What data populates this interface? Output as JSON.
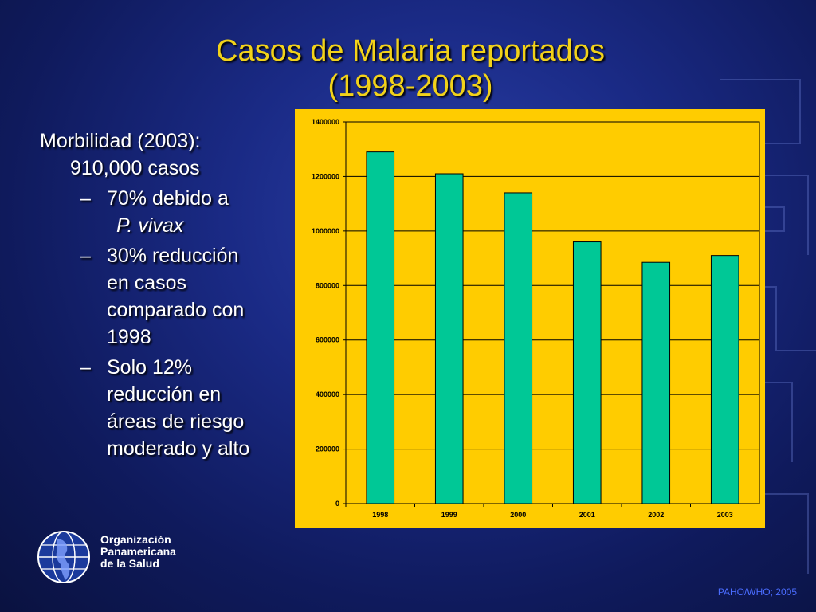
{
  "slide": {
    "title_line1": "Casos de Malaria reportados",
    "title_line2": "(1998-2003)",
    "footer": "PAHO/WHO; 2005"
  },
  "bullets": {
    "main_line1": "Morbilidad (2003):",
    "main_line2": "910,000 casos",
    "sub1_line1": "70% debido a",
    "sub1_line2": "P. vivax",
    "sub2_lines": [
      "30% reducción",
      "en casos",
      "comparado con",
      "1998"
    ],
    "sub3_lines": [
      "Solo 12%",
      "reducción en",
      "áreas de riesgo",
      "moderado y alto"
    ],
    "dash": "–"
  },
  "organization": {
    "line1": "Organización",
    "line2": "Panamericana",
    "line3": "de la Salud",
    "logo_icon": "globe-icon"
  },
  "colors": {
    "title": "#f2d21a",
    "chart_background": "#ffcc00",
    "bar_fill": "#00c896"
  },
  "chart_data": {
    "type": "bar",
    "categories": [
      "1998",
      "1999",
      "2000",
      "2001",
      "2002",
      "2003"
    ],
    "values": [
      1290000,
      1210000,
      1140000,
      960000,
      885000,
      910000
    ],
    "yticks": [
      0,
      200000,
      400000,
      600000,
      800000,
      1000000,
      1200000,
      1400000
    ],
    "ylim": [
      0,
      1400000
    ],
    "grid": true,
    "legend": false
  }
}
